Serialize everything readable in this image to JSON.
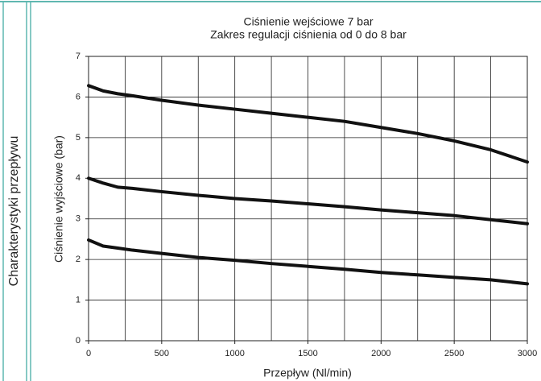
{
  "sidebar": {
    "title": "Charakterystyki przepływu"
  },
  "chart_data": {
    "type": "line",
    "title": "Ciśnienie wejściowe 7 bar",
    "subtitle": "Zakres regulacji ciśnienia od 0 do 8 bar",
    "xlabel": "Przepływ (Nl/min)",
    "ylabel": "Ciśnienie wyjściowe (bar)",
    "x": [
      0,
      100,
      200,
      300,
      500,
      750,
      1000,
      1250,
      1500,
      1750,
      2000,
      2250,
      2500,
      2750,
      3000
    ],
    "series": [
      {
        "color": "#111111",
        "values": [
          6.28,
          6.15,
          6.08,
          6.03,
          5.92,
          5.8,
          5.7,
          5.6,
          5.5,
          5.4,
          5.25,
          5.1,
          4.92,
          4.7,
          4.4
        ]
      },
      {
        "color": "#111111",
        "values": [
          4.0,
          3.88,
          3.78,
          3.75,
          3.67,
          3.58,
          3.5,
          3.44,
          3.37,
          3.3,
          3.22,
          3.15,
          3.08,
          2.98,
          2.88
        ]
      },
      {
        "color": "#111111",
        "values": [
          2.48,
          2.33,
          2.28,
          2.23,
          2.15,
          2.05,
          1.98,
          1.9,
          1.83,
          1.76,
          1.68,
          1.62,
          1.56,
          1.5,
          1.4
        ]
      }
    ],
    "xlim": [
      0,
      3000
    ],
    "xticks": [
      0,
      500,
      1000,
      1500,
      2000,
      2500,
      3000
    ],
    "xminor": [
      250,
      750,
      1250,
      1750,
      2250,
      2750
    ],
    "ylim": [
      0,
      7
    ],
    "yticks": [
      0,
      1,
      2,
      3,
      4,
      5,
      6,
      7
    ],
    "grid": true
  }
}
